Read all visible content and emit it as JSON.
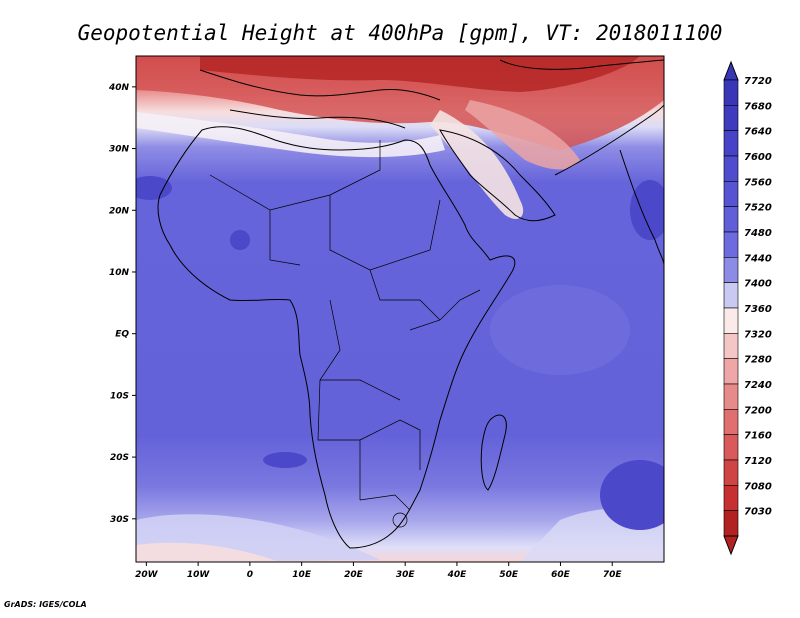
{
  "title": "Geopotential Height at 400hPa [gpm], VT: 2018011100",
  "credit": "GrADS: IGES/COLA",
  "map": {
    "lon_range": [
      -22,
      80
    ],
    "lat_range": [
      -37,
      45
    ],
    "x_ticks": [
      "20W",
      "10W",
      "0",
      "10E",
      "20E",
      "30E",
      "40E",
      "50E",
      "60E",
      "70E"
    ],
    "y_ticks": [
      "40N",
      "30N",
      "20N",
      "10N",
      "EQ",
      "10S",
      "20S",
      "30S"
    ]
  },
  "colorbar": {
    "levels": [
      "7720",
      "7680",
      "7640",
      "7600",
      "7560",
      "7520",
      "7480",
      "7440",
      "7400",
      "7360",
      "7320",
      "7280",
      "7240",
      "7200",
      "7160",
      "7120",
      "7080",
      "7030"
    ],
    "colors": [
      "#3a36b8",
      "#3f3bbf",
      "#4743c8",
      "#4f4ccd",
      "#5754d3",
      "#605ed8",
      "#6d6bdd",
      "#8c8be5",
      "#c9c9f2",
      "#fbeaea",
      "#f4c6c6",
      "#eea6a6",
      "#e78a8a",
      "#e07070",
      "#d85a5a",
      "#cf4444",
      "#c63030",
      "#b22222"
    ]
  }
}
